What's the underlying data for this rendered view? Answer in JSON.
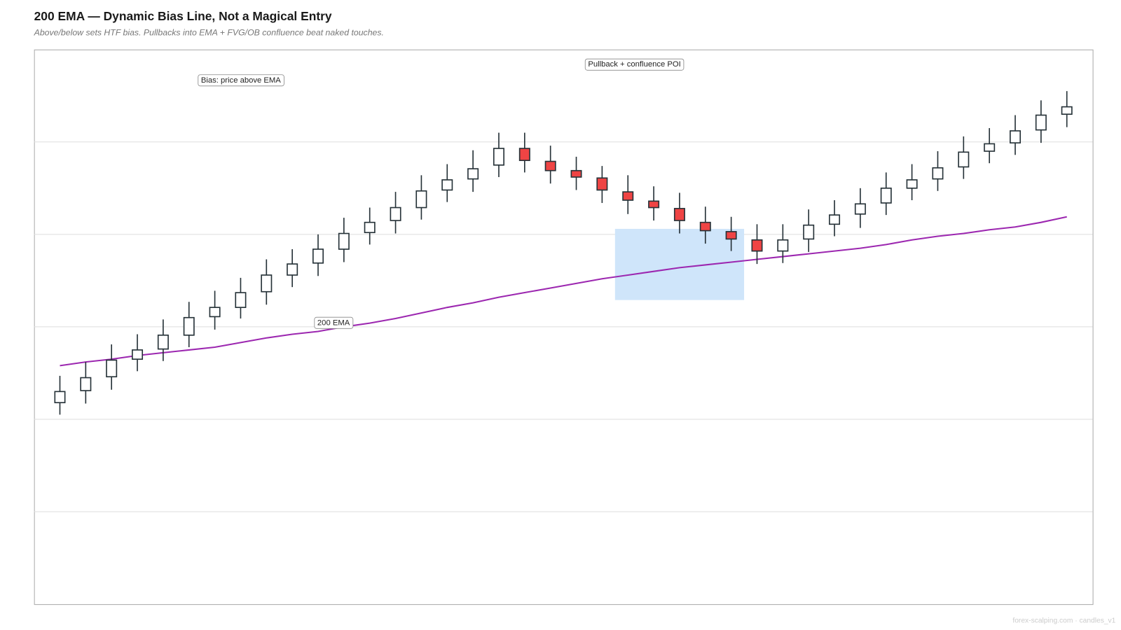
{
  "chart_data": {
    "type": "candlestick",
    "title": "200 EMA — Dynamic Bias Line, Not a Magical Entry",
    "subtitle": "Above/below sets HTF bias. Pullbacks into EMA + FVG/OB confluence beat naked touches.",
    "footer": "forex-scalping.com · candles_v1",
    "x": [
      1,
      2,
      3,
      4,
      5,
      6,
      7,
      8,
      9,
      10,
      11,
      12,
      13,
      14,
      15,
      16,
      17,
      18,
      19,
      20,
      21,
      22,
      23,
      24,
      25,
      26,
      27,
      28,
      29,
      30,
      31,
      32,
      33,
      34,
      35,
      36,
      37,
      38,
      39,
      40
    ],
    "open": [
      21.8,
      23.1,
      24.6,
      26.5,
      27.6,
      29.1,
      31.1,
      32.1,
      33.8,
      35.6,
      36.9,
      38.4,
      40.2,
      41.5,
      42.9,
      44.8,
      46.0,
      47.5,
      49.3,
      47.9,
      46.9,
      46.1,
      44.6,
      43.6,
      42.8,
      41.3,
      40.3,
      39.4,
      38.2,
      39.5,
      41.1,
      42.2,
      43.4,
      45.0,
      46.0,
      47.3,
      49.0,
      49.9,
      51.3,
      53.0
    ],
    "high": [
      24.7,
      26.2,
      28.1,
      29.2,
      30.8,
      32.7,
      33.9,
      35.3,
      37.3,
      38.4,
      40.0,
      41.8,
      42.9,
      44.6,
      46.4,
      47.6,
      49.1,
      51.0,
      51.0,
      49.6,
      48.4,
      47.4,
      46.4,
      45.2,
      44.5,
      43.0,
      41.9,
      41.1,
      41.1,
      42.7,
      43.7,
      45.0,
      46.7,
      47.6,
      49.0,
      50.6,
      51.5,
      52.9,
      54.5,
      55.5
    ],
    "low": [
      20.5,
      21.7,
      23.2,
      25.2,
      26.3,
      27.8,
      29.7,
      30.9,
      32.4,
      34.3,
      35.5,
      37.0,
      38.9,
      40.1,
      41.6,
      43.5,
      44.6,
      46.2,
      46.7,
      45.5,
      44.8,
      43.4,
      42.2,
      41.5,
      40.1,
      39.0,
      38.2,
      36.8,
      36.9,
      38.1,
      39.8,
      40.7,
      42.1,
      43.7,
      44.7,
      46.0,
      47.7,
      48.6,
      49.9,
      51.6
    ],
    "close": [
      23.0,
      24.5,
      26.4,
      27.5,
      29.1,
      31.0,
      32.1,
      33.7,
      35.6,
      36.8,
      38.4,
      40.1,
      41.3,
      42.9,
      44.7,
      45.9,
      47.1,
      49.3,
      48.0,
      46.9,
      46.2,
      44.8,
      43.7,
      42.9,
      41.5,
      40.4,
      39.5,
      38.2,
      39.4,
      41.0,
      42.1,
      43.3,
      45.0,
      45.9,
      47.2,
      48.9,
      49.8,
      51.2,
      52.9,
      53.8
    ],
    "up_color": "#ffffff",
    "down_color": "#ef4444",
    "edge_color": "#263238",
    "series": [
      {
        "name": "200 EMA",
        "color": "#9c27b0",
        "values": [
          25.8,
          26.2,
          26.5,
          26.9,
          27.2,
          27.5,
          27.8,
          28.3,
          28.8,
          29.2,
          29.5,
          30.0,
          30.4,
          30.9,
          31.5,
          32.1,
          32.6,
          33.2,
          33.7,
          34.2,
          34.7,
          35.2,
          35.6,
          36.0,
          36.4,
          36.7,
          37.0,
          37.3,
          37.6,
          37.9,
          38.2,
          38.5,
          38.9,
          39.4,
          39.8,
          40.1,
          40.5,
          40.8,
          41.3,
          41.9
        ]
      }
    ],
    "zone": {
      "x": [
        22.5,
        27.5
      ],
      "y": [
        32.9,
        40.6
      ],
      "color": "#cfe5fa"
    },
    "annotations": [
      {
        "text": "Bias: price above EMA"
      },
      {
        "text": "Pullback + confluence POI"
      }
    ],
    "xlim": [
      0,
      41
    ],
    "ylim": [
      0,
      60
    ],
    "yticks": [
      10,
      20,
      30,
      40,
      50
    ],
    "grid": true
  }
}
